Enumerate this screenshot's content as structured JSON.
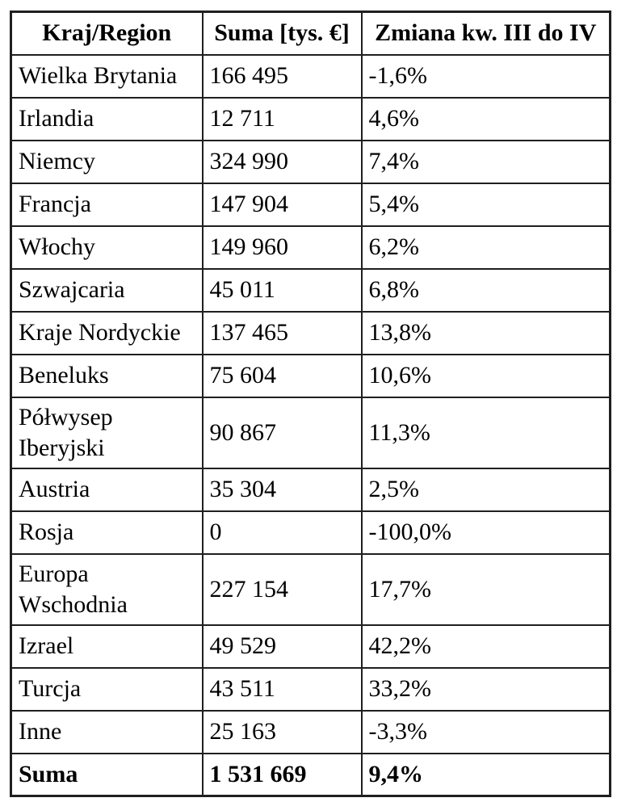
{
  "table": {
    "columns": [
      {
        "key": "region",
        "label": "Kraj/Region"
      },
      {
        "key": "sum",
        "label": "Suma [tys. €]"
      },
      {
        "key": "change",
        "label": "Zmiana kw. III do IV"
      }
    ],
    "rows": [
      {
        "region": "Wielka Brytania",
        "sum": "166 495",
        "change": "-1,6%"
      },
      {
        "region": "Irlandia",
        "sum": "12 711",
        "change": "4,6%"
      },
      {
        "region": "Niemcy",
        "sum": "324 990",
        "change": "7,4%"
      },
      {
        "region": "Francja",
        "sum": "147 904",
        "change": "5,4%"
      },
      {
        "region": "Włochy",
        "sum": "149 960",
        "change": "6,2%"
      },
      {
        "region": "Szwajcaria",
        "sum": "45 011",
        "change": "6,8%"
      },
      {
        "region": "Kraje Nordyckie",
        "sum": "137 465",
        "change": "13,8%"
      },
      {
        "region": "Beneluks",
        "sum": "75 604",
        "change": "10,6%"
      },
      {
        "region": "Półwysep Iberyjski",
        "sum": "90 867",
        "change": "11,3%"
      },
      {
        "region": "Austria",
        "sum": "35 304",
        "change": "2,5%"
      },
      {
        "region": "Rosja",
        "sum": "0",
        "change": "-100,0%"
      },
      {
        "region": "Europa Wschodnia",
        "sum": "227 154",
        "change": "17,7%"
      },
      {
        "region": "Izrael",
        "sum": "49 529",
        "change": "42,2%"
      },
      {
        "region": "Turcja",
        "sum": "43 511",
        "change": "33,2%"
      },
      {
        "region": "Inne",
        "sum": "25 163",
        "change": "-3,3%"
      }
    ],
    "total": {
      "region": "Suma",
      "sum": "1 531 669",
      "change": "9,4%"
    },
    "style": {
      "border_color": "#1f1f1f",
      "text_color": "#000000",
      "background": "#ffffff"
    }
  }
}
